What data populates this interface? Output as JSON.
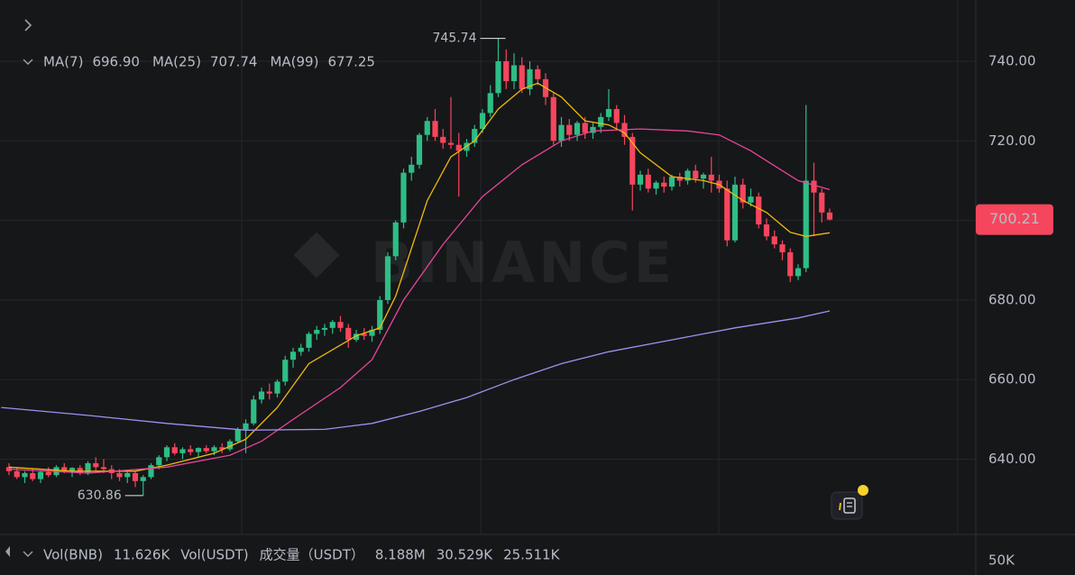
{
  "chart_data": {
    "type": "candlestick",
    "watermark": "BINANCE",
    "up_color": "#2ebd85",
    "down_color": "#f6465d",
    "xlim": [
      -1.143,
      122.514
    ],
    "ylim": [
      621.77,
      755.4
    ],
    "yticks": [
      {
        "value": 640,
        "label": "640.00"
      },
      {
        "value": 660,
        "label": "660.00"
      },
      {
        "value": 680,
        "label": "680.00"
      },
      {
        "value": 700,
        "label": "700.00"
      },
      {
        "value": 720,
        "label": "720.00"
      },
      {
        "value": 740,
        "label": "740.00"
      }
    ],
    "ohlc": [
      [
        638,
        639,
        636,
        637
      ],
      [
        637,
        638,
        635,
        635.5
      ],
      [
        635.5,
        637,
        634,
        636.5
      ],
      [
        636.5,
        637.5,
        634.5,
        635
      ],
      [
        635,
        637,
        634,
        636.8
      ],
      [
        636.8,
        638,
        635.5,
        636
      ],
      [
        636,
        638.5,
        635.5,
        638
      ],
      [
        638,
        639,
        636.5,
        637
      ],
      [
        637,
        638,
        635.5,
        637.8
      ],
      [
        637.8,
        638.5,
        636,
        636.5
      ],
      [
        636.5,
        639.5,
        636,
        639
      ],
      [
        639,
        640.5,
        637,
        638
      ],
      [
        638,
        640,
        636.5,
        637.5
      ],
      [
        637.5,
        638.5,
        635,
        636.5
      ],
      [
        636.5,
        637.5,
        634.5,
        635.5
      ],
      [
        635.5,
        637,
        634,
        636.5
      ],
      [
        636.5,
        637,
        633,
        634.5
      ],
      [
        634.5,
        636,
        630.86,
        635.5
      ],
      [
        635.5,
        639,
        635,
        638.5
      ],
      [
        638.5,
        641,
        637.5,
        640.5
      ],
      [
        640.5,
        643.5,
        639.5,
        643
      ],
      [
        643,
        644,
        641,
        641.5
      ],
      [
        641.5,
        643,
        640,
        642.5
      ],
      [
        642.5,
        643.5,
        641,
        641.8
      ],
      [
        641.8,
        643,
        640.5,
        642.8
      ],
      [
        642.8,
        643.5,
        641.5,
        642
      ],
      [
        642,
        643.5,
        641,
        643
      ],
      [
        643,
        644,
        641.5,
        642.5
      ],
      [
        642.5,
        645,
        642,
        644.5
      ],
      [
        644.5,
        648,
        644,
        647.5
      ],
      [
        647.5,
        650,
        641.5,
        649
      ],
      [
        649,
        656,
        648.5,
        655
      ],
      [
        655,
        658,
        654,
        657
      ],
      [
        657,
        659,
        655,
        656.5
      ],
      [
        656.5,
        660,
        655.5,
        659.5
      ],
      [
        659.5,
        666,
        658.5,
        665
      ],
      [
        665,
        668,
        663,
        667
      ],
      [
        667,
        669,
        666,
        668
      ],
      [
        668,
        672,
        667,
        671.5
      ],
      [
        671.5,
        673.5,
        670,
        672.5
      ],
      [
        672.5,
        674,
        671,
        673
      ],
      [
        673,
        675,
        671.5,
        674.5
      ],
      [
        674.5,
        676,
        672,
        673
      ],
      [
        673,
        674,
        668,
        670
      ],
      [
        670,
        672.5,
        669.5,
        671.5
      ],
      [
        671.5,
        673,
        670,
        671
      ],
      [
        671,
        673.5,
        669.5,
        672.5
      ],
      [
        672.5,
        681,
        671.5,
        680
      ],
      [
        680,
        692,
        679,
        691
      ],
      [
        691,
        700,
        690,
        699.5
      ],
      [
        699.5,
        713,
        698,
        712
      ],
      [
        712,
        716,
        710,
        714
      ],
      [
        714,
        722,
        713,
        721.5
      ],
      [
        721.5,
        726,
        720,
        725
      ],
      [
        725,
        728,
        720,
        721
      ],
      [
        721,
        723,
        718,
        719.5
      ],
      [
        719.5,
        731,
        718,
        719
      ],
      [
        719,
        722,
        706,
        717.5
      ],
      [
        717.5,
        720.5,
        716,
        719.5
      ],
      [
        719.5,
        724,
        718.5,
        723
      ],
      [
        723,
        728,
        722,
        727
      ],
      [
        727,
        734,
        726,
        732
      ],
      [
        732,
        745.74,
        731,
        740
      ],
      [
        740,
        743,
        733,
        735
      ],
      [
        735,
        742,
        733,
        739
      ],
      [
        739,
        741,
        732,
        733
      ],
      [
        733,
        740,
        731.5,
        738
      ],
      [
        738,
        739,
        734,
        735.5
      ],
      [
        735.5,
        737,
        729,
        731
      ],
      [
        731,
        732,
        719,
        720
      ],
      [
        720,
        726,
        718.5,
        724
      ],
      [
        724,
        725.5,
        720,
        721.5
      ],
      [
        721.5,
        725,
        720,
        724.5
      ],
      [
        724.5,
        726,
        720.5,
        722
      ],
      [
        722,
        724.5,
        720.5,
        723.5
      ],
      [
        723.5,
        727,
        722,
        726
      ],
      [
        726,
        733,
        725,
        728
      ],
      [
        728,
        729,
        723,
        724.5
      ],
      [
        724.5,
        726.5,
        719,
        721
      ],
      [
        721,
        722,
        702.5,
        709
      ],
      [
        709,
        712.5,
        707.5,
        711.5
      ],
      [
        711.5,
        713,
        707,
        708
      ],
      [
        708,
        710,
        706.5,
        709.5
      ],
      [
        709.5,
        711,
        707,
        708.5
      ],
      [
        708.5,
        711.5,
        707.5,
        711
      ],
      [
        711,
        712,
        708.5,
        710
      ],
      [
        710,
        713,
        709,
        712.5
      ],
      [
        712.5,
        714,
        709.5,
        710.5
      ],
      [
        710.5,
        712,
        708,
        711.5
      ],
      [
        711.5,
        716,
        707,
        710
      ],
      [
        710,
        711.5,
        707,
        708
      ],
      [
        708,
        710,
        693.5,
        695
      ],
      [
        695,
        711,
        694.5,
        709
      ],
      [
        709,
        710.5,
        703,
        704.5
      ],
      [
        704.5,
        708,
        703.5,
        706
      ],
      [
        706,
        707,
        698,
        699
      ],
      [
        699,
        700.5,
        695,
        696
      ],
      [
        696,
        697.5,
        693,
        694
      ],
      [
        694,
        695,
        690,
        692
      ],
      [
        692,
        693,
        684.5,
        686
      ],
      [
        686,
        689,
        685,
        688
      ],
      [
        688,
        729,
        687,
        710
      ],
      [
        710,
        714.5,
        696,
        707
      ],
      [
        707,
        708,
        699.5,
        702
      ],
      [
        702,
        703,
        700,
        700.21
      ]
    ],
    "series": [
      {
        "name": "MA(7)",
        "color": "#f0b90b",
        "value_label": "696.90",
        "x": [
          0,
          8,
          16,
          20,
          26,
          30,
          34,
          38,
          44,
          47,
          49,
          51,
          53,
          56,
          59,
          62,
          65,
          67,
          70,
          73,
          76,
          78,
          80,
          84,
          88,
          90,
          93,
          96,
          99,
          101,
          104
        ],
        "values": [
          638,
          637,
          637,
          638.5,
          641.5,
          645,
          653,
          664,
          671,
          673,
          681,
          693,
          705,
          716,
          720,
          728,
          733,
          734.5,
          731,
          725,
          724,
          722,
          717,
          711,
          710,
          709,
          705,
          702,
          697,
          696,
          696.9
        ]
      },
      {
        "name": "MA(25)",
        "color": "#e8459a",
        "value_label": "707.74",
        "x": [
          0,
          10,
          20,
          28,
          32,
          36,
          42,
          46,
          50,
          55,
          60,
          65,
          70,
          74,
          80,
          86,
          90,
          94,
          98,
          100,
          104
        ],
        "values": [
          637.5,
          636.5,
          638,
          641,
          644.5,
          650,
          658,
          665,
          680,
          694,
          706,
          714,
          720,
          722.5,
          723,
          722.5,
          721.5,
          717.5,
          712.5,
          710,
          707.74
        ]
      },
      {
        "name": "MA(99)",
        "color": "#a48ef0",
        "value_label": "677.25",
        "x": [
          -1,
          10,
          20,
          30,
          40,
          46,
          52,
          58,
          64,
          70,
          76,
          84,
          92,
          100,
          104
        ],
        "values": [
          653,
          651,
          649,
          647.3,
          647.5,
          649,
          652,
          655.5,
          660,
          664,
          667,
          670,
          673,
          675.5,
          677.25
        ]
      }
    ],
    "high": 745.74,
    "high_index": 62,
    "low": 630.86,
    "low_index": 17,
    "last_price": 700.21,
    "volume": {
      "title_bnb": "Vol(BNB)",
      "value_bnb": "11.626K",
      "title_usdt": "Vol(USDT)",
      "title_cn": "成交量（USDT）",
      "value_usdt": "8.188M",
      "ma1": "30.529K",
      "ma2": "25.511K",
      "ytick": "50K"
    }
  }
}
